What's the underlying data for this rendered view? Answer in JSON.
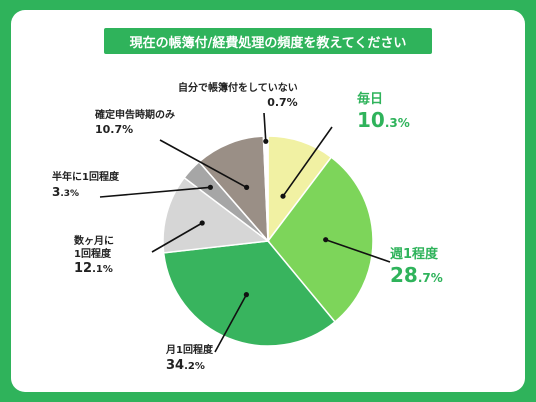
{
  "title": "現在の帳簿付/経費処理の頻度を教えてください",
  "colors": {
    "background": "#2fb35b",
    "accent": "#2fb35b"
  },
  "chart_data": {
    "type": "pie",
    "title": "現在の帳簿付/経費処理の頻度を教えてください",
    "slices": [
      {
        "label": "毎日",
        "value": 10.3,
        "int": "10",
        "dec": ".3%",
        "color": "#f1f1a3"
      },
      {
        "label": "週1程度",
        "value": 28.7,
        "int": "28",
        "dec": ".7%",
        "color": "#7dd55a"
      },
      {
        "label": "月1回程度",
        "value": 34.2,
        "int": "34",
        "dec": ".2%",
        "color": "#38b45e"
      },
      {
        "label": "数ヶ月に1回程度",
        "value": 12.1,
        "int": "12",
        "dec": ".1%",
        "color": "#d6d6d6"
      },
      {
        "label": "半年に1回程度",
        "value": 3.3,
        "int": "3",
        "dec": ".3%",
        "color": "#a6a6a6"
      },
      {
        "label": "確定申告時期のみ",
        "value": 10.7,
        "int": "10.7%",
        "dec": "",
        "color": "#9a8f86"
      },
      {
        "label": "自分で帳簿付をしていない",
        "value": 0.7,
        "int": "0.7%",
        "dec": "",
        "color": "#ffffff"
      }
    ],
    "labels": {
      "label_4_line1": "数ヶ月に",
      "label_4_line2": "1回程度"
    }
  }
}
